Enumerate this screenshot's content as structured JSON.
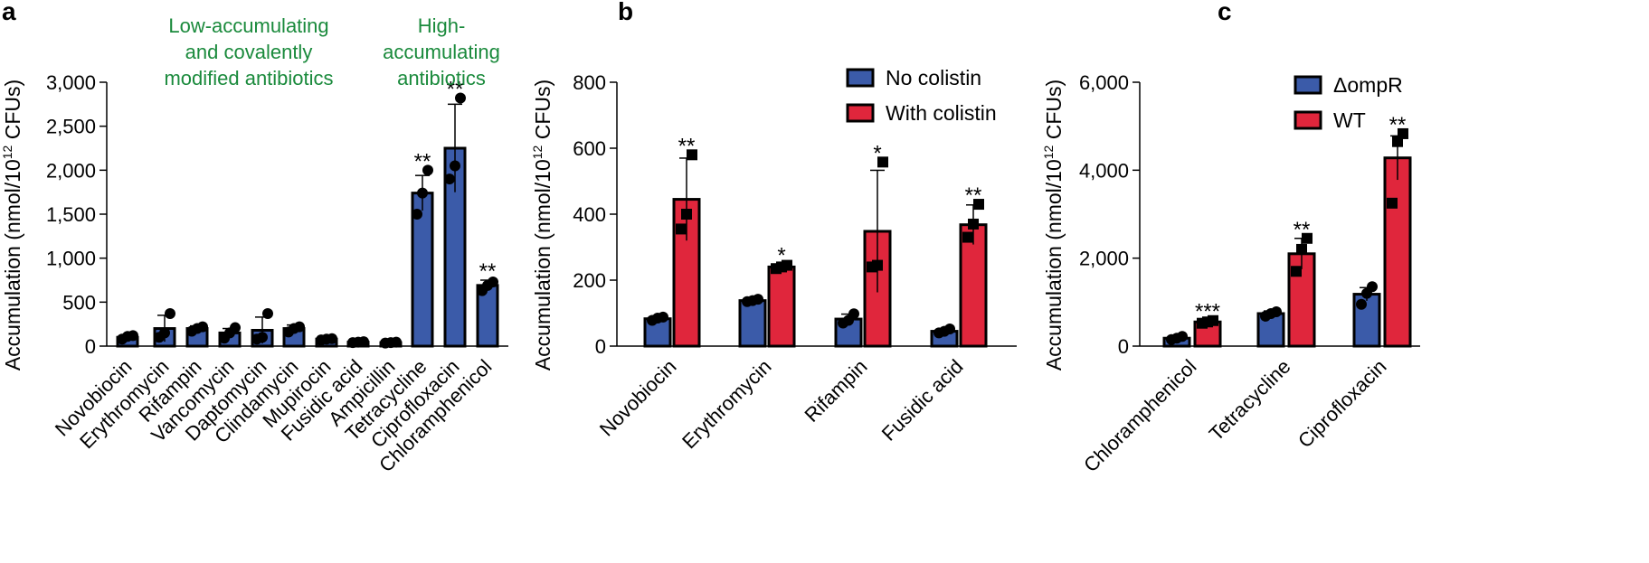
{
  "chart_data": [
    {
      "panel": "a",
      "type": "bar",
      "ylabel_main": "Accumulation (nmol/10",
      "ylabel_sup": "12",
      "ylabel_tail": " CFUs)",
      "ylim": [
        0,
        3000
      ],
      "yticks": [
        0,
        500,
        1000,
        1500,
        2000,
        2500,
        3000
      ],
      "ytick_labels": [
        "0",
        "500",
        "1,000",
        "1,500",
        "2,000",
        "2,500",
        "3,000"
      ],
      "group_labels": [
        {
          "lines": [
            "Low-accumulating",
            "and covalently",
            "modified antibiotics"
          ]
        },
        {
          "lines": [
            "High-",
            "accumulating",
            "antibiotics"
          ]
        }
      ],
      "categories": [
        "Novobiocin",
        "Erythromycin",
        "Rifampin",
        "Vancomycin",
        "Daptomycin",
        "Clindamycin",
        "Mupirocin",
        "Fusidic acid",
        "Ampicillin",
        "Tetracycline",
        "Ciprofloxacin",
        "Chloramphenicol"
      ],
      "series": [
        {
          "name": "Accumulation",
          "color": "#3b5ba9",
          "values": [
            100,
            200,
            200,
            150,
            180,
            200,
            80,
            45,
            40,
            1740,
            2250,
            690
          ],
          "errors": [
            30,
            150,
            30,
            50,
            150,
            40,
            15,
            10,
            10,
            200,
            500,
            60
          ],
          "points": [
            [
              80,
              110,
              120
            ],
            [
              100,
              150,
              370
            ],
            [
              170,
              200,
              220
            ],
            [
              90,
              150,
              210
            ],
            [
              80,
              100,
              370
            ],
            [
              160,
              200,
              220
            ],
            [
              70,
              80,
              85
            ],
            [
              40,
              45,
              50
            ],
            [
              35,
              40,
              45
            ],
            [
              1500,
              1740,
              2000
            ],
            [
              1900,
              2050,
              2820
            ],
            [
              630,
              690,
              730
            ]
          ],
          "sig": [
            "",
            "",
            "",
            "",
            "",
            "",
            "",
            "",
            "",
            "**",
            "**",
            "**"
          ]
        }
      ]
    },
    {
      "panel": "b",
      "type": "bar",
      "ylabel_main": "Accumulation (nmol/10",
      "ylabel_sup": "12",
      "ylabel_tail": " CFUs)",
      "ylim": [
        0,
        800
      ],
      "yticks": [
        0,
        200,
        400,
        600,
        800
      ],
      "ytick_labels": [
        "0",
        "200",
        "400",
        "600",
        "800"
      ],
      "categories": [
        "Novobiocin",
        "Erythromycin",
        "Rifampin",
        "Fusidic acid"
      ],
      "legend": [
        "No colistin",
        "With colistin"
      ],
      "series": [
        {
          "name": "No colistin",
          "color": "#3b5ba9",
          "values": [
            83,
            138,
            82,
            45
          ],
          "errors": [
            8,
            5,
            15,
            8
          ],
          "points": [
            [
              78,
              85,
              88
            ],
            [
              135,
              138,
              142
            ],
            [
              70,
              78,
              98
            ],
            [
              40,
              45,
              52
            ]
          ],
          "sig": [
            "",
            "",
            "",
            ""
          ]
        },
        {
          "name": "With colistin",
          "color": "#e0263c",
          "values": [
            445,
            240,
            348,
            368
          ],
          "errors": [
            125,
            8,
            185,
            60
          ],
          "points": [
            [
              355,
              400,
              580
            ],
            [
              235,
              240,
              245
            ],
            [
              240,
              245,
              558
            ],
            [
              330,
              370,
              430
            ]
          ],
          "sig": [
            "**",
            "*",
            "*",
            "**"
          ]
        }
      ]
    },
    {
      "panel": "c",
      "type": "bar",
      "ylabel_main": "Accumulation (nmol/10",
      "ylabel_sup": "12",
      "ylabel_tail": " CFUs)",
      "ylim": [
        0,
        6000
      ],
      "yticks": [
        0,
        2000,
        4000,
        6000
      ],
      "ytick_labels": [
        "0",
        "2,000",
        "4,000",
        "6,000"
      ],
      "categories": [
        "Chloramphenicol",
        "Tetracycline",
        "Ciprofloxacin"
      ],
      "legend": [
        "ΔompR",
        "WT"
      ],
      "series": [
        {
          "name": "ΔompR",
          "color": "#3b5ba9",
          "values": [
            180,
            740,
            1180
          ],
          "errors": [
            40,
            60,
            150
          ],
          "points": [
            [
              150,
              180,
              220
            ],
            [
              680,
              740,
              780
            ],
            [
              950,
              1200,
              1350
            ]
          ],
          "sig": [
            "",
            "",
            ""
          ]
        },
        {
          "name": "WT",
          "color": "#e0263c",
          "values": [
            550,
            2100,
            4280
          ],
          "errors": [
            40,
            350,
            500
          ],
          "points": [
            [
              520,
              550,
              580
            ],
            [
              1700,
              2200,
              2450
            ],
            [
              3250,
              4650,
              4830
            ]
          ],
          "sig": [
            "***",
            "**",
            "**"
          ]
        }
      ]
    }
  ]
}
